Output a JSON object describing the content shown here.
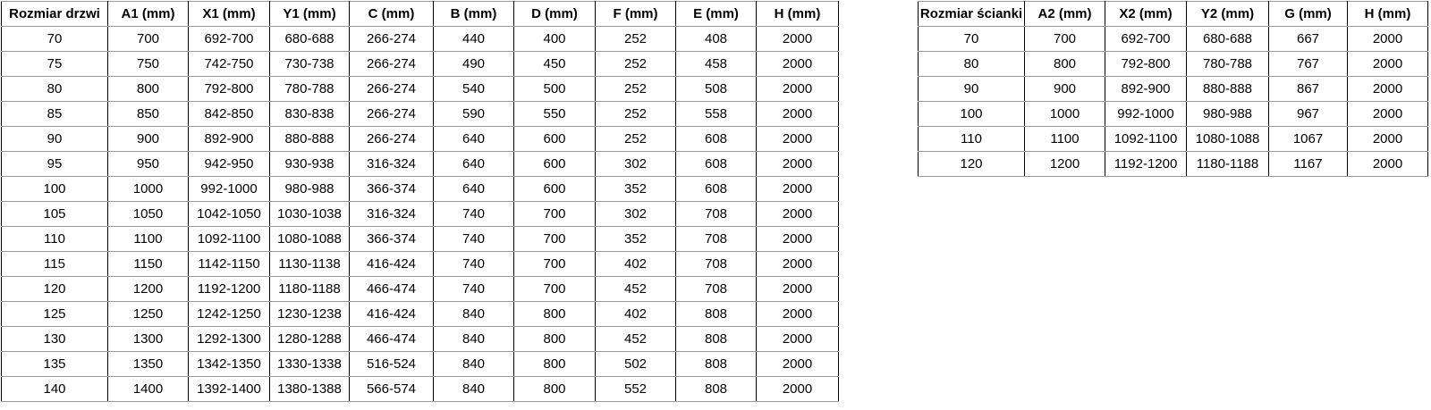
{
  "styles": {
    "background": "#ffffff",
    "text_color": "#000000",
    "vertical_rule_color": "#000000",
    "horizontal_rule_color": "#9a9a9a"
  },
  "tables": [
    {
      "name": "door-size-table",
      "headers": [
        "Rozmiar drzwi",
        "A1 (mm)",
        "X1 (mm)",
        "Y1 (mm)",
        "C (mm)",
        "B (mm)",
        "D (mm)",
        "F (mm)",
        "E (mm)",
        "H (mm)"
      ],
      "rows": [
        [
          "70",
          "700",
          "692-700",
          "680-688",
          "266-274",
          "440",
          "400",
          "252",
          "408",
          "2000"
        ],
        [
          "75",
          "750",
          "742-750",
          "730-738",
          "266-274",
          "490",
          "450",
          "252",
          "458",
          "2000"
        ],
        [
          "80",
          "800",
          "792-800",
          "780-788",
          "266-274",
          "540",
          "500",
          "252",
          "508",
          "2000"
        ],
        [
          "85",
          "850",
          "842-850",
          "830-838",
          "266-274",
          "590",
          "550",
          "252",
          "558",
          "2000"
        ],
        [
          "90",
          "900",
          "892-900",
          "880-888",
          "266-274",
          "640",
          "600",
          "252",
          "608",
          "2000"
        ],
        [
          "95",
          "950",
          "942-950",
          "930-938",
          "316-324",
          "640",
          "600",
          "302",
          "608",
          "2000"
        ],
        [
          "100",
          "1000",
          "992-1000",
          "980-988",
          "366-374",
          "640",
          "600",
          "352",
          "608",
          "2000"
        ],
        [
          "105",
          "1050",
          "1042-1050",
          "1030-1038",
          "316-324",
          "740",
          "700",
          "302",
          "708",
          "2000"
        ],
        [
          "110",
          "1100",
          "1092-1100",
          "1080-1088",
          "366-374",
          "740",
          "700",
          "352",
          "708",
          "2000"
        ],
        [
          "115",
          "1150",
          "1142-1150",
          "1130-1138",
          "416-424",
          "740",
          "700",
          "402",
          "708",
          "2000"
        ],
        [
          "120",
          "1200",
          "1192-1200",
          "1180-1188",
          "466-474",
          "740",
          "700",
          "452",
          "708",
          "2000"
        ],
        [
          "125",
          "1250",
          "1242-1250",
          "1230-1238",
          "416-424",
          "840",
          "800",
          "402",
          "808",
          "2000"
        ],
        [
          "130",
          "1300",
          "1292-1300",
          "1280-1288",
          "466-474",
          "840",
          "800",
          "452",
          "808",
          "2000"
        ],
        [
          "135",
          "1350",
          "1342-1350",
          "1330-1338",
          "516-524",
          "840",
          "800",
          "502",
          "808",
          "2000"
        ],
        [
          "140",
          "1400",
          "1392-1400",
          "1380-1388",
          "566-574",
          "840",
          "800",
          "552",
          "808",
          "2000"
        ]
      ]
    },
    {
      "name": "wall-panel-size-table",
      "headers": [
        "Rozmiar ścianki",
        "A2 (mm)",
        "X2 (mm)",
        "Y2 (mm)",
        "G (mm)",
        "H (mm)"
      ],
      "rows": [
        [
          "70",
          "700",
          "692-700",
          "680-688",
          "667",
          "2000"
        ],
        [
          "80",
          "800",
          "792-800",
          "780-788",
          "767",
          "2000"
        ],
        [
          "90",
          "900",
          "892-900",
          "880-888",
          "867",
          "2000"
        ],
        [
          "100",
          "1000",
          "992-1000",
          "980-988",
          "967",
          "2000"
        ],
        [
          "110",
          "1100",
          "1092-1100",
          "1080-1088",
          "1067",
          "2000"
        ],
        [
          "120",
          "1200",
          "1192-1200",
          "1180-1188",
          "1167",
          "2000"
        ]
      ]
    }
  ]
}
